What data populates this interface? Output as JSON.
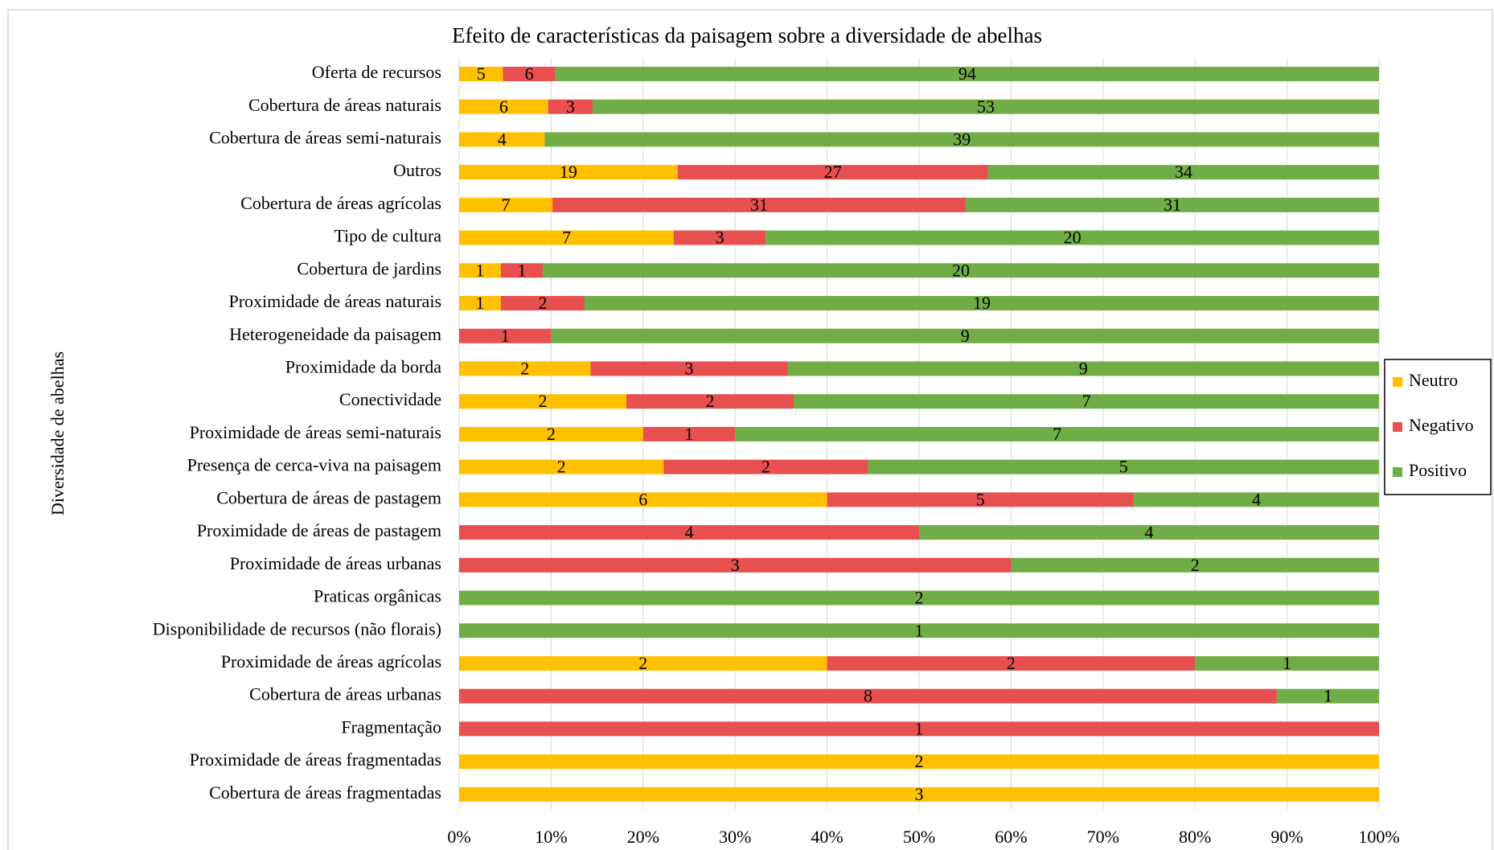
{
  "chart_data": {
    "type": "bar100h",
    "title": "Efeito de características da paisagem sobre a diversidade de abelhas",
    "y_label": "Diversidade de abelhas",
    "categories": [
      "Oferta de recursos",
      "Cobertura de áreas naturais",
      "Cobertura de áreas semi-naturais",
      "Outros",
      "Cobertura de áreas agrícolas",
      "Tipo de cultura",
      "Cobertura de jardins",
      "Proximidade de áreas naturais",
      "Heterogeneidade da paisagem",
      "Proximidade da borda",
      "Conectividade",
      "Proximidade de áreas semi-naturais",
      "Presença de cerca-viva na paisagem",
      "Cobertura de áreas de pastagem",
      "Proximidade de áreas de pastagem",
      "Proximidade de áreas urbanas",
      "Praticas orgânicas",
      "Disponibilidade de recursos (não florais)",
      "Proximidade de áreas agrícolas",
      "Cobertura de áreas urbanas",
      "Fragmentação",
      "Proximidade de áreas fragmentadas",
      "Cobertura de áreas fragmentadas"
    ],
    "series": [
      {
        "name": "Neutro",
        "color": "#ffc000",
        "values": [
          5,
          6,
          4,
          19,
          7,
          7,
          1,
          1,
          null,
          2,
          2,
          2,
          2,
          6,
          null,
          null,
          null,
          null,
          2,
          null,
          null,
          2,
          3
        ]
      },
      {
        "name": "Negativo",
        "color": "#e84f4f",
        "values": [
          6,
          3,
          null,
          27,
          31,
          3,
          1,
          2,
          1,
          3,
          2,
          1,
          2,
          5,
          4,
          3,
          null,
          null,
          2,
          8,
          1,
          null,
          null
        ]
      },
      {
        "name": "Positivo",
        "color": "#70ad47",
        "values": [
          94,
          53,
          39,
          34,
          31,
          20,
          20,
          19,
          9,
          9,
          7,
          7,
          5,
          4,
          4,
          2,
          2,
          1,
          1,
          1,
          null,
          null,
          null
        ]
      }
    ],
    "xlim": [
      0,
      100
    ],
    "xticks": [
      {
        "value": 0,
        "label": "0%"
      },
      {
        "value": 10,
        "label": "10%"
      },
      {
        "value": 20,
        "label": "20%"
      },
      {
        "value": 30,
        "label": "30%"
      },
      {
        "value": 40,
        "label": "40%"
      },
      {
        "value": 50,
        "label": "50%"
      },
      {
        "value": 60,
        "label": "60%"
      },
      {
        "value": 70,
        "label": "70%"
      },
      {
        "value": 80,
        "label": "80%"
      },
      {
        "value": 90,
        "label": "90%"
      },
      {
        "value": 100,
        "label": "100%"
      }
    ],
    "grid": true,
    "legend": "right"
  }
}
